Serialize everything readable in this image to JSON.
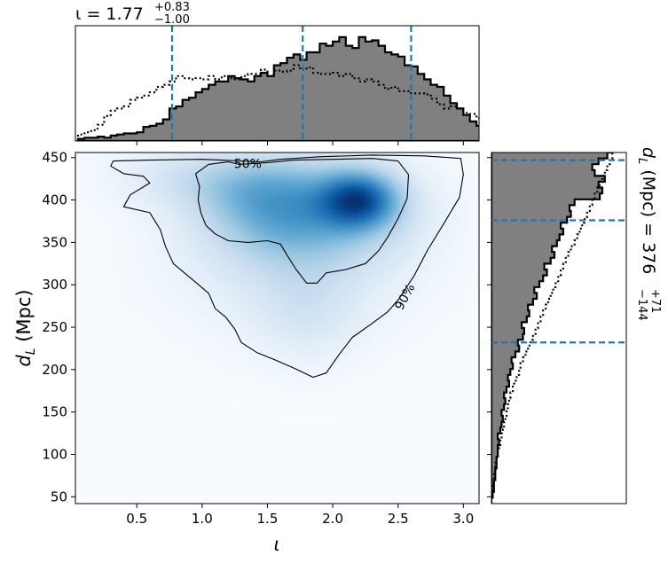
{
  "chart_data": [
    {
      "type": "heatmap",
      "panel": "joint",
      "xlabel": "ι",
      "ylabel_main": "d",
      "ylabel_sub": "L",
      "ylabel_unit": " (Mpc)",
      "xlim": [
        0.03,
        3.12
      ],
      "ylim": [
        42,
        456
      ],
      "xticks": [
        0.5,
        1.0,
        1.5,
        2.0,
        2.5,
        3.0
      ],
      "xtick_labels": [
        "0.5",
        "1.0",
        "1.5",
        "2.0",
        "2.5",
        "3.0"
      ],
      "yticks": [
        50,
        100,
        150,
        200,
        250,
        300,
        350,
        400,
        450
      ],
      "ytick_labels": [
        "50",
        "100",
        "150",
        "200",
        "250",
        "300",
        "350",
        "400",
        "450"
      ],
      "colormap": "Blues",
      "density_blobs": [
        {
          "x": 2.2,
          "y": 400,
          "sx": 0.2,
          "sy": 22,
          "w": 1.0
        },
        {
          "x": 1.9,
          "y": 385,
          "sx": 0.45,
          "sy": 40,
          "w": 0.45
        },
        {
          "x": 1.5,
          "y": 390,
          "sx": 0.35,
          "sy": 35,
          "w": 0.3
        },
        {
          "x": 1.3,
          "y": 420,
          "sx": 0.4,
          "sy": 25,
          "w": 0.25
        },
        {
          "x": 1.7,
          "y": 330,
          "sx": 0.55,
          "sy": 55,
          "w": 0.18
        },
        {
          "x": 1.8,
          "y": 270,
          "sx": 0.25,
          "sy": 40,
          "w": 0.12
        },
        {
          "x": 0.8,
          "y": 430,
          "sx": 0.35,
          "sy": 25,
          "w": 0.08
        }
      ],
      "contours": [
        {
          "label": "50%",
          "label_at": [
            1.35,
            443
          ],
          "label_rotation": 0,
          "points": [
            [
              1.28,
              442
            ],
            [
              1.2,
              445
            ],
            [
              1.05,
              442
            ],
            [
              0.95,
              431
            ],
            [
              0.98,
              416
            ],
            [
              0.97,
              400
            ],
            [
              0.99,
              385
            ],
            [
              1.03,
              370
            ],
            [
              1.1,
              360
            ],
            [
              1.2,
              352
            ],
            [
              1.35,
              350
            ],
            [
              1.5,
              352
            ],
            [
              1.6,
              348
            ],
            [
              1.65,
              335
            ],
            [
              1.72,
              318
            ],
            [
              1.8,
              302
            ],
            [
              1.88,
              302
            ],
            [
              1.95,
              314
            ],
            [
              2.1,
              318
            ],
            [
              2.25,
              325
            ],
            [
              2.35,
              340
            ],
            [
              2.42,
              356
            ],
            [
              2.5,
              378
            ],
            [
              2.57,
              402
            ],
            [
              2.58,
              430
            ],
            [
              2.5,
              446
            ],
            [
              2.3,
              449
            ],
            [
              2.0,
              448
            ],
            [
              1.7,
              447
            ],
            [
              1.5,
              444
            ]
          ]
        },
        {
          "label": "90%",
          "label_at": [
            2.55,
            286
          ],
          "label_rotation": -62,
          "points": [
            [
              2.62,
              310
            ],
            [
              2.73,
              342
            ],
            [
              2.85,
              372
            ],
            [
              2.97,
              403
            ],
            [
              3.0,
              430
            ],
            [
              2.98,
              449
            ],
            [
              2.7,
              452
            ],
            [
              2.3,
              453
            ],
            [
              1.9,
              451
            ],
            [
              1.6,
              448
            ],
            [
              1.45,
              445
            ],
            [
              1.0,
              448
            ],
            [
              0.6,
              447
            ],
            [
              0.32,
              446
            ],
            [
              0.3,
              440
            ],
            [
              0.4,
              431
            ],
            [
              0.55,
              428
            ],
            [
              0.6,
              420
            ],
            [
              0.45,
              406
            ],
            [
              0.4,
              392
            ],
            [
              0.6,
              385
            ],
            [
              0.68,
              365
            ],
            [
              0.72,
              345
            ],
            [
              0.78,
              325
            ],
            [
              0.95,
              303
            ],
            [
              1.05,
              290
            ],
            [
              1.1,
              272
            ],
            [
              1.18,
              262
            ],
            [
              1.25,
              248
            ],
            [
              1.3,
              232
            ],
            [
              1.42,
              220
            ],
            [
              1.55,
              212
            ],
            [
              1.7,
              202
            ],
            [
              1.85,
              191
            ],
            [
              1.95,
              196
            ],
            [
              2.05,
              218
            ],
            [
              2.15,
              238
            ],
            [
              2.28,
              252
            ],
            [
              2.42,
              268
            ],
            [
              2.5,
              282
            ]
          ]
        }
      ]
    },
    {
      "type": "histogram",
      "panel": "top-marginal",
      "title_prefix": "ι = 1.77",
      "title_sup": "+0.83",
      "title_sub": "−1.00",
      "quantiles": [
        0.77,
        1.77,
        2.6
      ],
      "bin_start": 0.05,
      "bin_width": 0.05,
      "series": [
        {
          "name": "posterior",
          "style": "solid-filled",
          "fill": "#808080",
          "values": [
            0.02,
            0.03,
            0.03,
            0.04,
            0.03,
            0.05,
            0.06,
            0.07,
            0.07,
            0.08,
            0.13,
            0.14,
            0.16,
            0.2,
            0.3,
            0.32,
            0.38,
            0.4,
            0.45,
            0.48,
            0.52,
            0.55,
            0.55,
            0.6,
            0.58,
            0.57,
            0.55,
            0.6,
            0.63,
            0.6,
            0.7,
            0.72,
            0.77,
            0.8,
            0.75,
            0.82,
            0.82,
            0.9,
            0.88,
            0.92,
            0.96,
            0.88,
            0.86,
            0.96,
            0.92,
            0.93,
            0.88,
            0.82,
            0.8,
            0.78,
            0.7,
            0.69,
            0.62,
            0.57,
            0.52,
            0.5,
            0.42,
            0.35,
            0.3,
            0.24,
            0.18,
            0.14,
            0.1,
            0.07,
            0.05,
            0.04
          ]
        },
        {
          "name": "prior",
          "style": "dotted",
          "values": [
            0.06,
            0.08,
            0.1,
            0.15,
            0.23,
            0.28,
            0.3,
            0.32,
            0.38,
            0.4,
            0.42,
            0.45,
            0.5,
            0.52,
            0.55,
            0.6,
            0.58,
            0.57,
            0.58,
            0.57,
            0.6,
            0.57,
            0.6,
            0.58,
            0.57,
            0.6,
            0.62,
            0.62,
            0.66,
            0.6,
            0.65,
            0.64,
            0.65,
            0.7,
            0.66,
            0.68,
            0.63,
            0.62,
            0.62,
            0.63,
            0.6,
            0.62,
            0.58,
            0.55,
            0.57,
            0.55,
            0.52,
            0.48,
            0.5,
            0.46,
            0.46,
            0.44,
            0.44,
            0.43,
            0.39,
            0.34,
            0.3,
            0.32,
            0.3,
            0.26,
            0.25,
            0.21,
            0.18,
            0.12,
            0.1,
            0.06
          ]
        }
      ]
    },
    {
      "type": "histogram",
      "panel": "right-marginal",
      "orientation": "horizontal",
      "side_label_main": "d",
      "side_label_sub": "L",
      "side_label_rest": " (Mpc) = 376",
      "side_label_sup": "+71",
      "side_label_subscript": "−144",
      "quantiles": [
        232,
        376,
        447
      ],
      "bin_start": 42,
      "bin_width": 6.9,
      "series": [
        {
          "name": "posterior",
          "style": "solid-filled",
          "fill": "#808080",
          "values": [
            0.0,
            0.01,
            0.02,
            0.02,
            0.03,
            0.03,
            0.04,
            0.04,
            0.05,
            0.05,
            0.06,
            0.05,
            0.07,
            0.08,
            0.09,
            0.08,
            0.1,
            0.11,
            0.1,
            0.12,
            0.14,
            0.13,
            0.15,
            0.17,
            0.16,
            0.19,
            0.22,
            0.21,
            0.25,
            0.26,
            0.24,
            0.28,
            0.3,
            0.29,
            0.33,
            0.36,
            0.34,
            0.38,
            0.41,
            0.44,
            0.42,
            0.47,
            0.5,
            0.48,
            0.52,
            0.54,
            0.57,
            0.55,
            0.6,
            0.63,
            0.62,
            0.66,
            0.86,
            0.88,
            0.85,
            0.9,
            0.82,
            0.8,
            0.85,
            0.92,
            0.95,
            0.98
          ]
        },
        {
          "name": "prior",
          "style": "dotted",
          "values": [
            0.0,
            0.01,
            0.01,
            0.02,
            0.02,
            0.03,
            0.03,
            0.04,
            0.05,
            0.06,
            0.07,
            0.08,
            0.09,
            0.1,
            0.11,
            0.12,
            0.13,
            0.14,
            0.15,
            0.17,
            0.18,
            0.2,
            0.22,
            0.23,
            0.25,
            0.27,
            0.29,
            0.31,
            0.33,
            0.35,
            0.37,
            0.39,
            0.41,
            0.43,
            0.45,
            0.47,
            0.49,
            0.51,
            0.53,
            0.55,
            0.57,
            0.59,
            0.61,
            0.63,
            0.66,
            0.68,
            0.7,
            0.72,
            0.74,
            0.76,
            0.78,
            0.8,
            0.82,
            0.84,
            0.86,
            0.88,
            0.9,
            0.92,
            0.94,
            0.96,
            0.97,
            0.99
          ]
        }
      ]
    }
  ]
}
